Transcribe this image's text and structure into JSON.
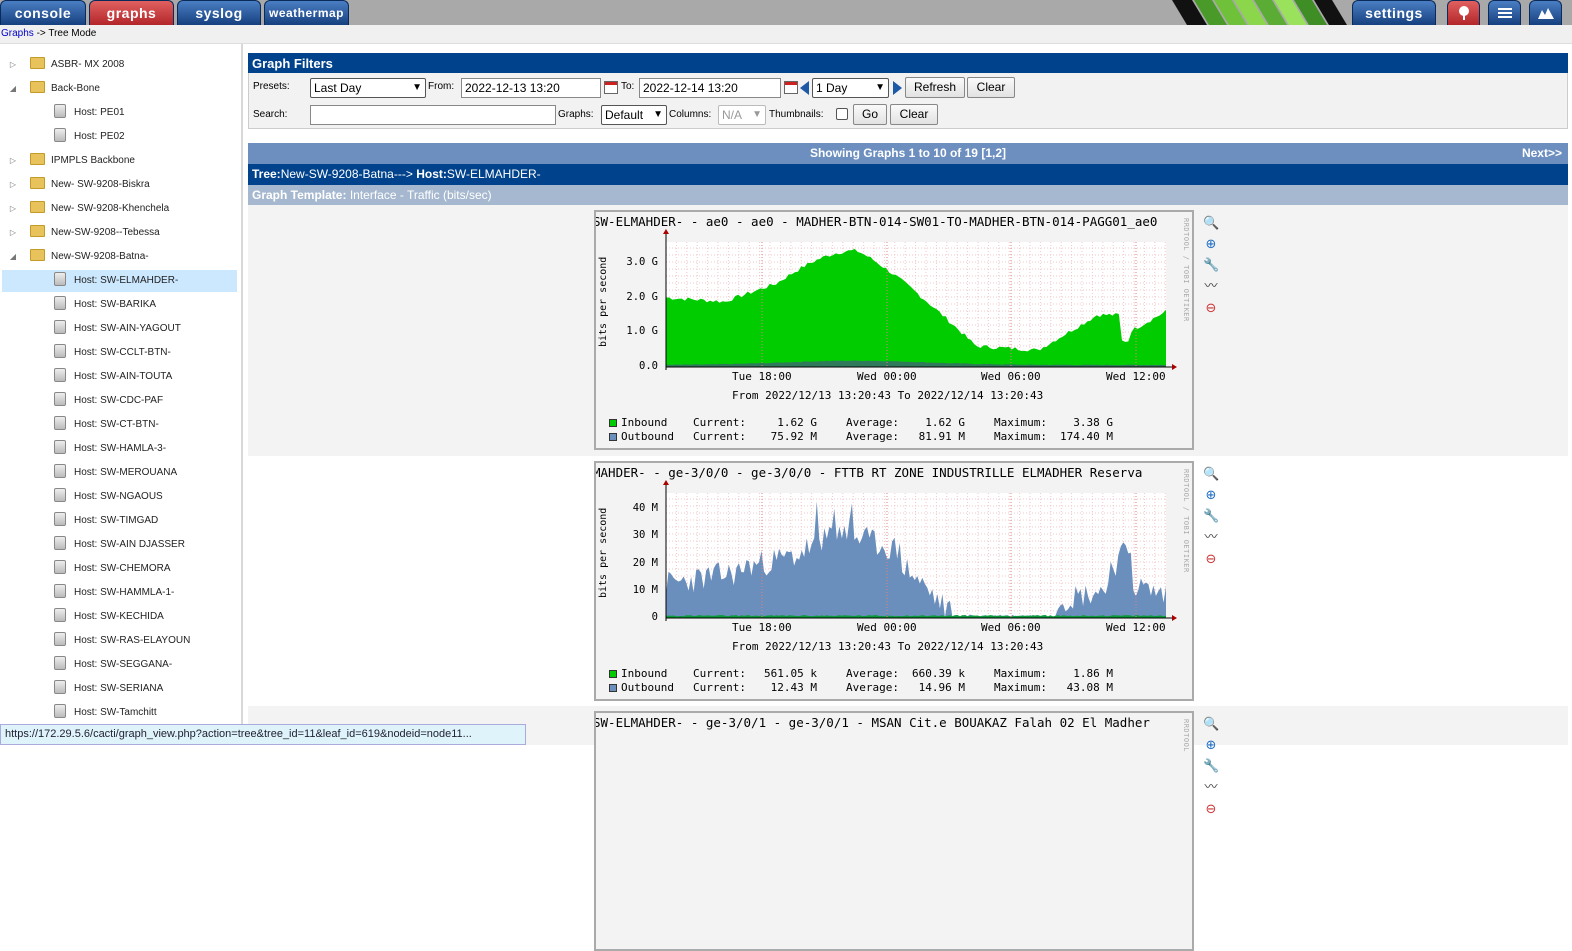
{
  "tabs": [
    {
      "label": "console",
      "style": "blue"
    },
    {
      "label": "graphs",
      "style": "red"
    },
    {
      "label": "syslog",
      "style": "blue"
    },
    {
      "label": "weathermap",
      "style": "blue"
    }
  ],
  "right_tabs": {
    "settings": "settings",
    "icons": [
      "tree-view-icon",
      "list-view-icon",
      "preview-view-icon"
    ]
  },
  "breadcrumb": {
    "link": "Graphs",
    "rest": " -> Tree Mode"
  },
  "tree": [
    {
      "label": "ASBR- MX 2008",
      "type": "folder",
      "expanded": false,
      "level": 0
    },
    {
      "label": "Back-Bone",
      "type": "folder",
      "expanded": true,
      "level": 0
    },
    {
      "label": "Host: PE01",
      "type": "host",
      "level": 1
    },
    {
      "label": "Host: PE02",
      "type": "host",
      "level": 1
    },
    {
      "label": "IPMPLS Backbone",
      "type": "folder",
      "expanded": false,
      "level": 0
    },
    {
      "label": "New- SW-9208-Biskra",
      "type": "folder",
      "expanded": false,
      "level": 0
    },
    {
      "label": "New- SW-9208-Khenchela",
      "type": "folder",
      "expanded": false,
      "level": 0
    },
    {
      "label": "New-SW-9208--Tebessa",
      "type": "folder",
      "expanded": false,
      "level": 0
    },
    {
      "label": "New-SW-9208-Batna-",
      "type": "folder",
      "expanded": true,
      "level": 0
    },
    {
      "label": "Host: SW-ELMAHDER-",
      "type": "host",
      "level": 1,
      "selected": true
    },
    {
      "label": "Host: SW-BARIKA",
      "type": "host",
      "level": 1
    },
    {
      "label": "Host: SW-AIN-YAGOUT",
      "type": "host",
      "level": 1
    },
    {
      "label": "Host: SW-CCLT-BTN-",
      "type": "host",
      "level": 1
    },
    {
      "label": "Host: SW-AIN-TOUTA",
      "type": "host",
      "level": 1
    },
    {
      "label": "Host: SW-CDC-PAF",
      "type": "host",
      "level": 1
    },
    {
      "label": "Host: SW-CT-BTN-",
      "type": "host",
      "level": 1
    },
    {
      "label": "Host: SW-HAMLA-3-",
      "type": "host",
      "level": 1
    },
    {
      "label": "Host: SW-MEROUANA",
      "type": "host",
      "level": 1
    },
    {
      "label": "Host: SW-NGAOUS",
      "type": "host",
      "level": 1
    },
    {
      "label": "Host: SW-TIMGAD",
      "type": "host",
      "level": 1
    },
    {
      "label": "Host: SW-AIN DJASSER",
      "type": "host",
      "level": 1
    },
    {
      "label": "Host: SW-CHEMORA",
      "type": "host",
      "level": 1
    },
    {
      "label": "Host: SW-HAMMLA-1-",
      "type": "host",
      "level": 1
    },
    {
      "label": "Host: SW-KECHIDA",
      "type": "host",
      "level": 1
    },
    {
      "label": "Host: SW-RAS-ELAYOUN",
      "type": "host",
      "level": 1
    },
    {
      "label": "Host: SW-SEGGANA-",
      "type": "host",
      "level": 1
    },
    {
      "label": "Host: SW-SERIANA",
      "type": "host",
      "level": 1
    },
    {
      "label": "Host: SW-Tamchitt",
      "type": "host",
      "level": 1
    }
  ],
  "filters": {
    "title": "Graph Filters",
    "presets_label": "Presets:",
    "preset_value": "Last Day",
    "from_label": "From:",
    "from_value": "2022-12-13 13:20",
    "to_label": "To:",
    "to_value": "2022-12-14 13:20",
    "span_value": "1 Day",
    "refresh": "Refresh",
    "clear": "Clear",
    "search_label": "Search:",
    "search_value": "",
    "graphs_label": "Graphs:",
    "graphs_value": "Default",
    "columns_label": "Columns:",
    "columns_value": "N/A",
    "thumbnails_label": "Thumbnails:",
    "go": "Go",
    "clear2": "Clear"
  },
  "showing": {
    "text": "Showing Graphs 1 to 10 of 19 [",
    "page1": "1",
    "comma": ",",
    "page2": "2",
    "close": "]",
    "next": "Next>>"
  },
  "treebar": {
    "tree_label": "Tree:",
    "tree_value": "New-SW-9208-Batna-",
    "arrow": "--> ",
    "host_label": "Host:",
    "host_value": "SW-ELMAHDER-"
  },
  "template": {
    "label": "Graph Template:",
    "value": "Interface - Traffic (bits/sec)"
  },
  "graphs": [
    {
      "title": "SW-ELMAHDER- - ae0 - ae0 - MADHER-BTN-014-SW01-TO-MADHER-BTN-014-PAGG01_ae0",
      "ylabel": "bits per second",
      "rrd": "RRDTOOL / TOBI OETIKER",
      "yticks": [
        "3.0 G",
        "2.0 G",
        "1.0 G",
        "0.0"
      ],
      "xticks": [
        "Tue 18:00",
        "Wed 00:00",
        "Wed 06:00",
        "Wed 12:00"
      ],
      "fromto": "From 2022/12/13 13:20:43 To 2022/12/14 13:20:43",
      "legend": [
        {
          "name": "Inbound",
          "current": "1.62 G",
          "average": "1.62 G",
          "maximum": "3.38 G",
          "color": "#00cc00"
        },
        {
          "name": "Outbound",
          "current": "75.92 M",
          "average": "81.91 M",
          "maximum": "174.40 M",
          "color": "#6b8fbd"
        }
      ]
    },
    {
      "title": "MAHDER- - ge-3/0/0 - ge-3/0/0 - FTTB  RT ZONE INDUSTRILLE ELMADHER  Reserva",
      "ylabel": "bits per second",
      "rrd": "RRDTOOL / TOBI OETIKER",
      "yticks": [
        "40 M",
        "30 M",
        "20 M",
        "10 M",
        "0"
      ],
      "xticks": [
        "Tue 18:00",
        "Wed 00:00",
        "Wed 06:00",
        "Wed 12:00"
      ],
      "fromto": "From 2022/12/13 13:20:43 To 2022/12/14 13:20:43",
      "legend": [
        {
          "name": "Inbound",
          "current": "561.05 k",
          "average": "660.39 k",
          "maximum": "1.86 M",
          "color": "#00cc00"
        },
        {
          "name": "Outbound",
          "current": "12.43 M",
          "average": "14.96 M",
          "maximum": "43.08 M",
          "color": "#6b8fbd"
        }
      ]
    },
    {
      "title": "SW-ELMAHDER- - ge-3/0/1 - ge-3/0/1 - MSAN Cit.e BOUAKAZ Falah 02 El Madher",
      "rrd": "RRDTOOL"
    }
  ],
  "legend_labels": {
    "current": "Current:",
    "average": "Average:",
    "maximum": "Maximum:"
  },
  "statusbar": "https://172.29.5.6/cacti/graph_view.php?action=tree&tree_id=11&leaf_id=619&nodeid=node11..."
}
